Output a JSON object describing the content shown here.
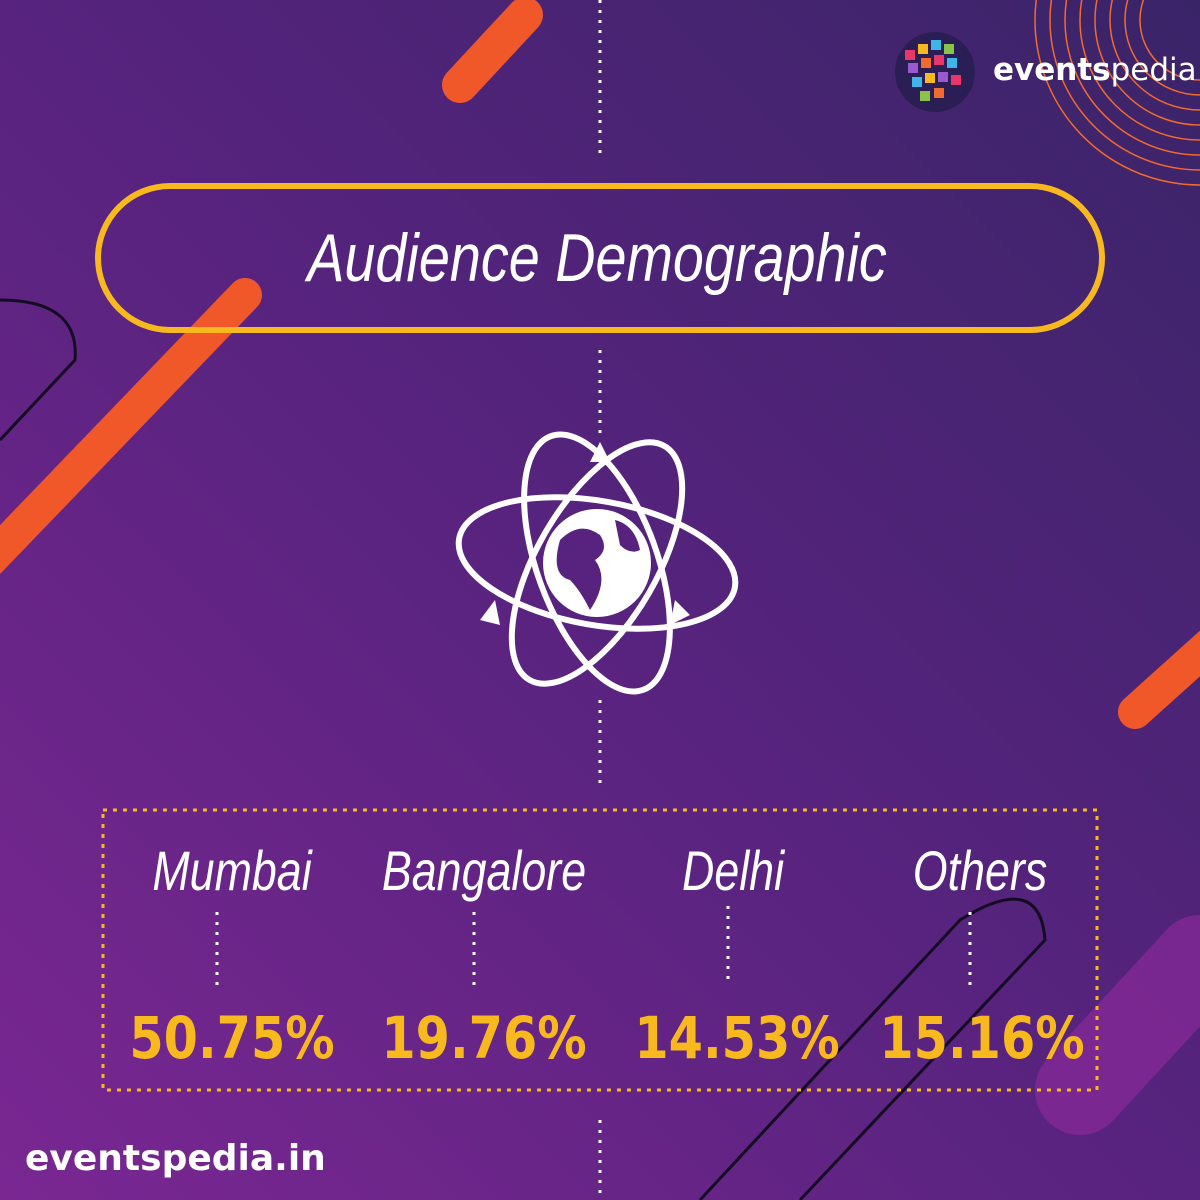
{
  "logo": {
    "parts": [
      "events",
      "pedia"
    ]
  },
  "title": "Audience Demographic",
  "items": [
    {
      "label": "Mumbai",
      "value": "50.75%"
    },
    {
      "label": "Bangalore",
      "value": "19.76%"
    },
    {
      "label": "Delhi",
      "value": "14.53%"
    },
    {
      "label": "Others",
      "value": "15.16%"
    }
  ],
  "footer": "eventspedia.in"
}
